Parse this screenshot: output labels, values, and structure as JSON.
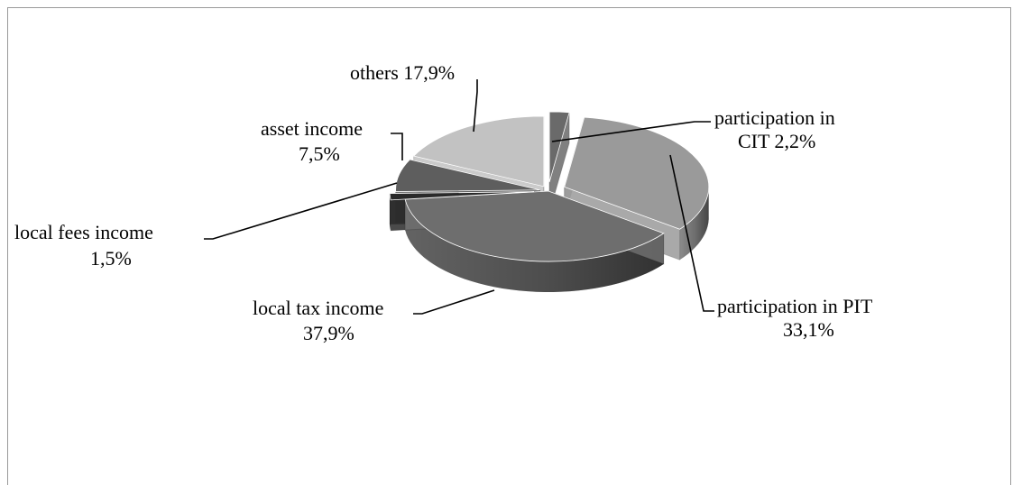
{
  "chart_data": {
    "type": "pie",
    "style": "3d-exploded",
    "grayscale": true,
    "legend": "none",
    "slices": [
      {
        "name": "participation in CIT",
        "value": 2.2,
        "label": "2,2%",
        "color": "#6a6a6a"
      },
      {
        "name": "participation in PIT",
        "value": 33.1,
        "label": "33,1%",
        "color": "#9a9a9a"
      },
      {
        "name": "local tax income",
        "value": 37.9,
        "label": "37,9%",
        "color": "#6e6e6e"
      },
      {
        "name": "local fees income",
        "value": 1.5,
        "label": "1,5%",
        "color": "#2a2a2a"
      },
      {
        "name": "asset income",
        "value": 7.5,
        "label": "7,5%",
        "color": "#5e5e5e"
      },
      {
        "name": "others",
        "value": 17.9,
        "label": "17,9%",
        "color": "#c2c2c2"
      }
    ]
  },
  "labels": {
    "cit_line1": "participation in",
    "cit_line2": "CIT 2,2%",
    "pit_line1": "participation in PIT",
    "pit_line2": "33,1%",
    "tax_line1": "local tax income",
    "tax_line2": "37,9%",
    "fees_line1": "local fees income",
    "fees_line2": "1,5%",
    "asset_line1": "asset income",
    "asset_line2": "7,5%",
    "others_line1": "others  17,9%"
  }
}
